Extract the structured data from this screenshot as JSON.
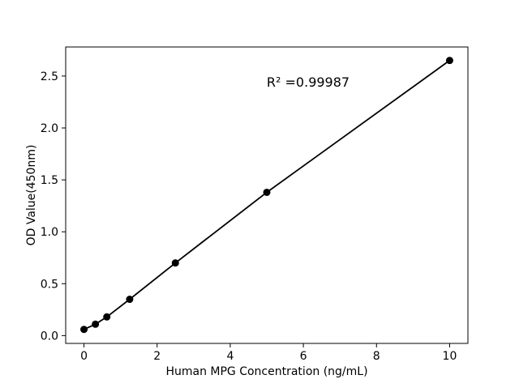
{
  "figure": {
    "background_color": "#ffffff",
    "foreground_color": "#000000"
  },
  "chart_data": {
    "type": "line",
    "marker": "circle",
    "x": [
      0,
      0.313,
      0.625,
      1.25,
      2.5,
      5,
      10
    ],
    "y": [
      0.06,
      0.11,
      0.18,
      0.35,
      0.7,
      1.38,
      2.65
    ],
    "series_name": "standard-curve",
    "title": "",
    "xlabel": "Human MPG Concentration (ng/mL)",
    "ylabel": "OD Value(450nm)",
    "annotation": "R² =0.99987",
    "xlim": [
      -0.5,
      10.5
    ],
    "ylim": [
      -0.075,
      2.78
    ],
    "xticks": {
      "values": [
        0,
        2,
        4,
        6,
        8,
        10
      ],
      "labels": [
        "0",
        "2",
        "4",
        "6",
        "8",
        "10"
      ]
    },
    "yticks": {
      "values": [
        0,
        0.5,
        1.0,
        1.5,
        2.0,
        2.5
      ],
      "labels": [
        "0.0",
        "0.5",
        "1.0",
        "1.5",
        "2.0",
        "2.5"
      ]
    },
    "grid": false,
    "legend": "none",
    "line_color": "#000000",
    "marker_color": "#000000"
  }
}
